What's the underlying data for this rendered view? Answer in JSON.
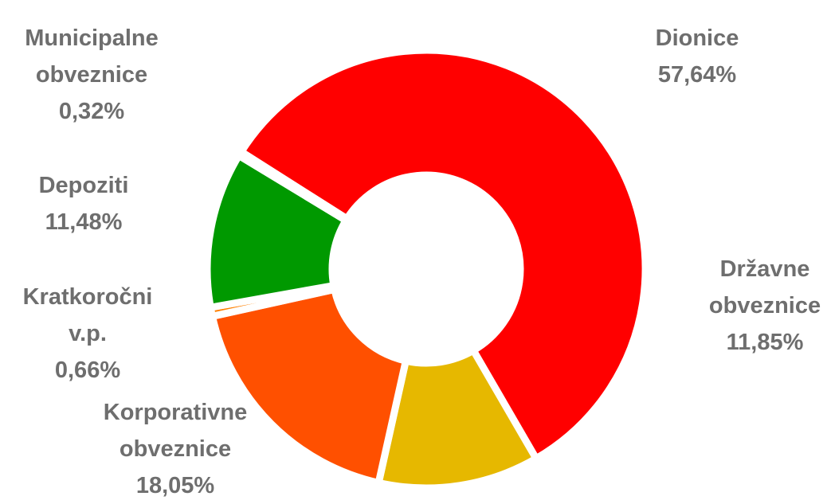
{
  "chart_data": {
    "type": "pie",
    "donut": true,
    "legend": "none",
    "slices": [
      {
        "label_lines": [
          "Dionice"
        ],
        "value": 57.64,
        "value_text": "57,64%",
        "color": "#ff0000"
      },
      {
        "label_lines": [
          "Državne",
          "obveznice"
        ],
        "value": 11.85,
        "value_text": "11,85%",
        "color": "#e6b800"
      },
      {
        "label_lines": [
          "Korporativne",
          "obveznice"
        ],
        "value": 18.05,
        "value_text": "18,05%",
        "color": "#ff5000"
      },
      {
        "label_lines": [
          "Kratkoročni",
          "v.p."
        ],
        "value": 0.66,
        "value_text": "0,66%",
        "color": "#ff8000"
      },
      {
        "label_lines": [
          "Depoziti"
        ],
        "value": 11.48,
        "value_text": "11,48%",
        "color": "#009900"
      },
      {
        "label_lines": [
          "Municipalne",
          "obveznice"
        ],
        "value": 0.32,
        "value_text": "0,32%",
        "color": "#ff3300"
      }
    ]
  }
}
